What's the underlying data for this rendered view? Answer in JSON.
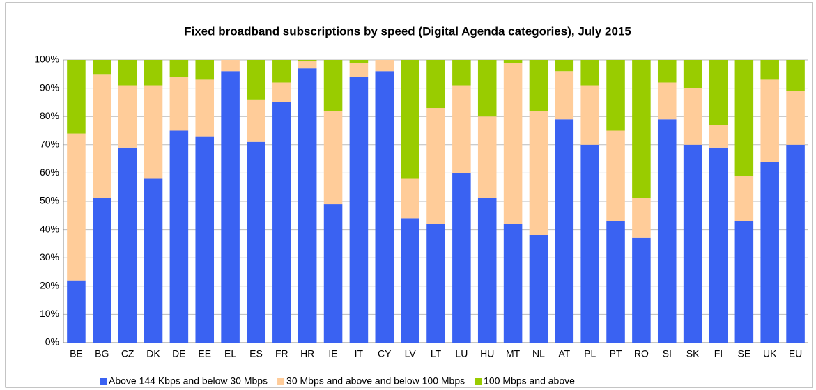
{
  "chart_data": {
    "type": "stacked_bar",
    "title": "Fixed broadband subscriptions by speed (Digital Agenda categories),  July 2015",
    "categories": [
      "BE",
      "BG",
      "CZ",
      "DK",
      "DE",
      "EE",
      "EL",
      "ES",
      "FR",
      "HR",
      "IE",
      "IT",
      "CY",
      "LV",
      "LT",
      "LU",
      "HU",
      "MT",
      "NL",
      "AT",
      "PL",
      "PT",
      "RO",
      "SI",
      "SK",
      "FI",
      "SE",
      "UK",
      "EU"
    ],
    "series": [
      {
        "name": "Above 144 Kbps and below 30 Mbps",
        "color": "#3a62f2",
        "values": [
          22,
          51,
          69,
          58,
          75,
          73,
          96,
          71,
          85,
          97,
          49,
          94,
          96,
          44,
          42,
          60,
          51,
          42,
          38,
          79,
          70,
          43,
          37,
          79,
          70,
          69,
          43,
          64,
          70
        ]
      },
      {
        "name": "30 Mbps and above and below 100 Mbps",
        "color": "#ffcc99",
        "values": [
          52,
          44,
          22,
          33,
          19,
          20,
          4,
          15,
          7,
          2.5,
          33,
          5,
          4,
          14,
          41,
          31,
          29,
          57,
          44,
          17,
          21,
          32,
          14,
          13,
          20,
          8,
          16,
          29,
          19
        ]
      },
      {
        "name": "100 Mbps and above",
        "color": "#99cc00",
        "values": [
          26,
          5,
          9,
          9,
          6,
          7,
          0,
          14,
          8,
          0.5,
          18,
          1,
          0,
          42,
          17,
          9,
          20,
          1,
          18,
          4,
          9,
          25,
          49,
          8,
          10,
          23,
          41,
          7,
          11
        ]
      }
    ],
    "ylim": [
      0,
      100
    ],
    "yticks": [
      {
        "value": 0,
        "label": "0%"
      },
      {
        "value": 10,
        "label": "10%"
      },
      {
        "value": 20,
        "label": "20%"
      },
      {
        "value": 30,
        "label": "30%"
      },
      {
        "value": 40,
        "label": "40%"
      },
      {
        "value": 50,
        "label": "50%"
      },
      {
        "value": 60,
        "label": "60%"
      },
      {
        "value": 70,
        "label": "70%"
      },
      {
        "value": 80,
        "label": "80%"
      },
      {
        "value": 90,
        "label": "90%"
      },
      {
        "value": 100,
        "label": "100%"
      }
    ],
    "grid": true,
    "legend": "bottom"
  }
}
